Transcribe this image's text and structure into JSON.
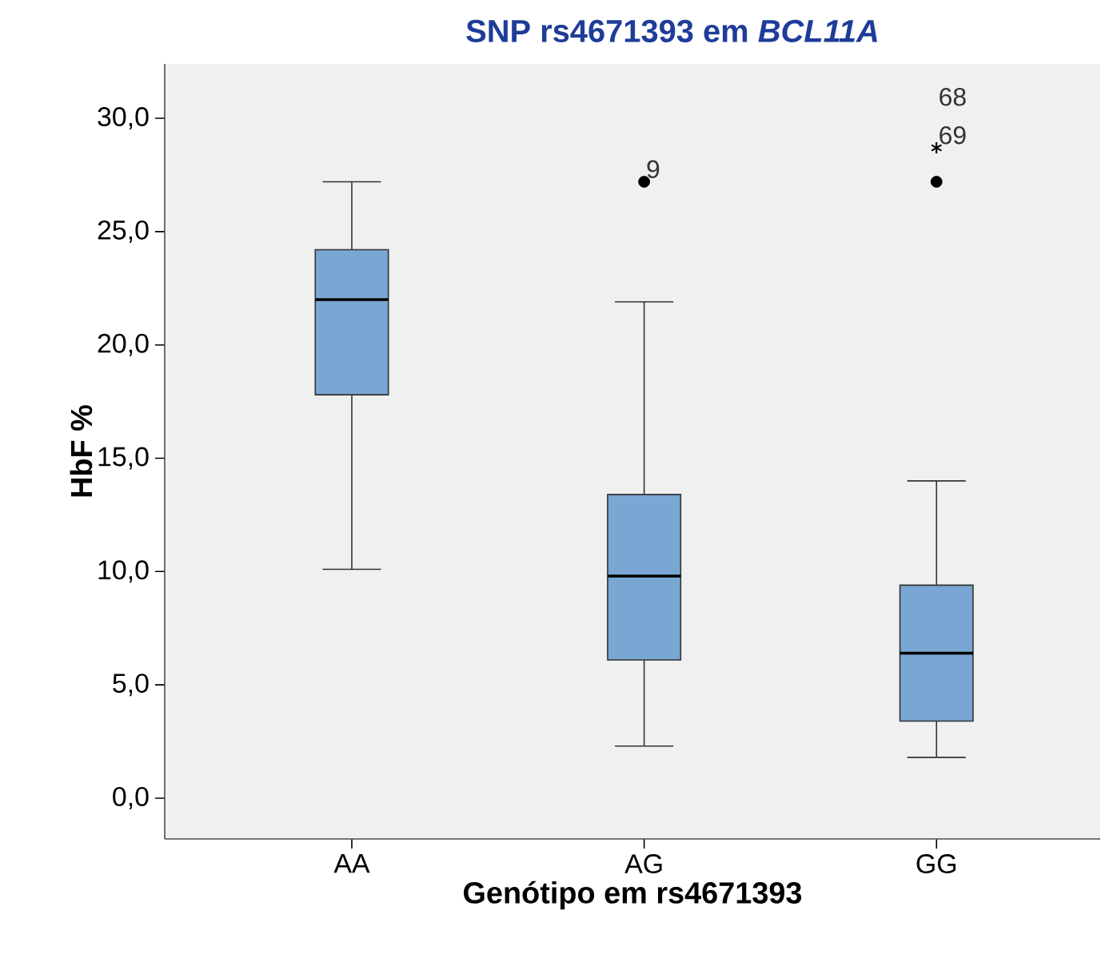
{
  "chart_data": {
    "type": "box",
    "title": "SNP rs4671393 em  *BCL11A*",
    "xlabel": "Genótipo em rs4671393",
    "ylabel": "HbF %",
    "categories": [
      "AA",
      "AG",
      "GG"
    ],
    "color": "#79a6d2",
    "boxes": [
      {
        "low": 10.1,
        "q1": 17.8,
        "median": 22.0,
        "q3": 24.2,
        "high": 27.2
      },
      {
        "low": 2.3,
        "q1": 6.1,
        "median": 9.8,
        "q3": 13.4,
        "high": 21.9,
        "outliers": [
          27.2
        ]
      },
      {
        "low": 1.8,
        "q1": 3.4,
        "median": 6.4,
        "q3": 9.4,
        "high": 14.0,
        "outliers": [
          28.7,
          28.7,
          27.2
        ]
      }
    ],
    "ylim": [
      -1.8,
      32.4
    ],
    "yticks": [
      {
        "value": 0,
        "label": "0,0"
      },
      {
        "value": 5,
        "label": "5,0"
      },
      {
        "value": 10,
        "label": "10,0"
      },
      {
        "value": 15,
        "label": "15,0"
      },
      {
        "value": 20,
        "label": "20,0"
      },
      {
        "value": 25,
        "label": "25,0"
      },
      {
        "value": 30,
        "label": "30,0"
      }
    ],
    "grid": false,
    "annotations": [
      "9",
      "69",
      "68"
    ]
  }
}
